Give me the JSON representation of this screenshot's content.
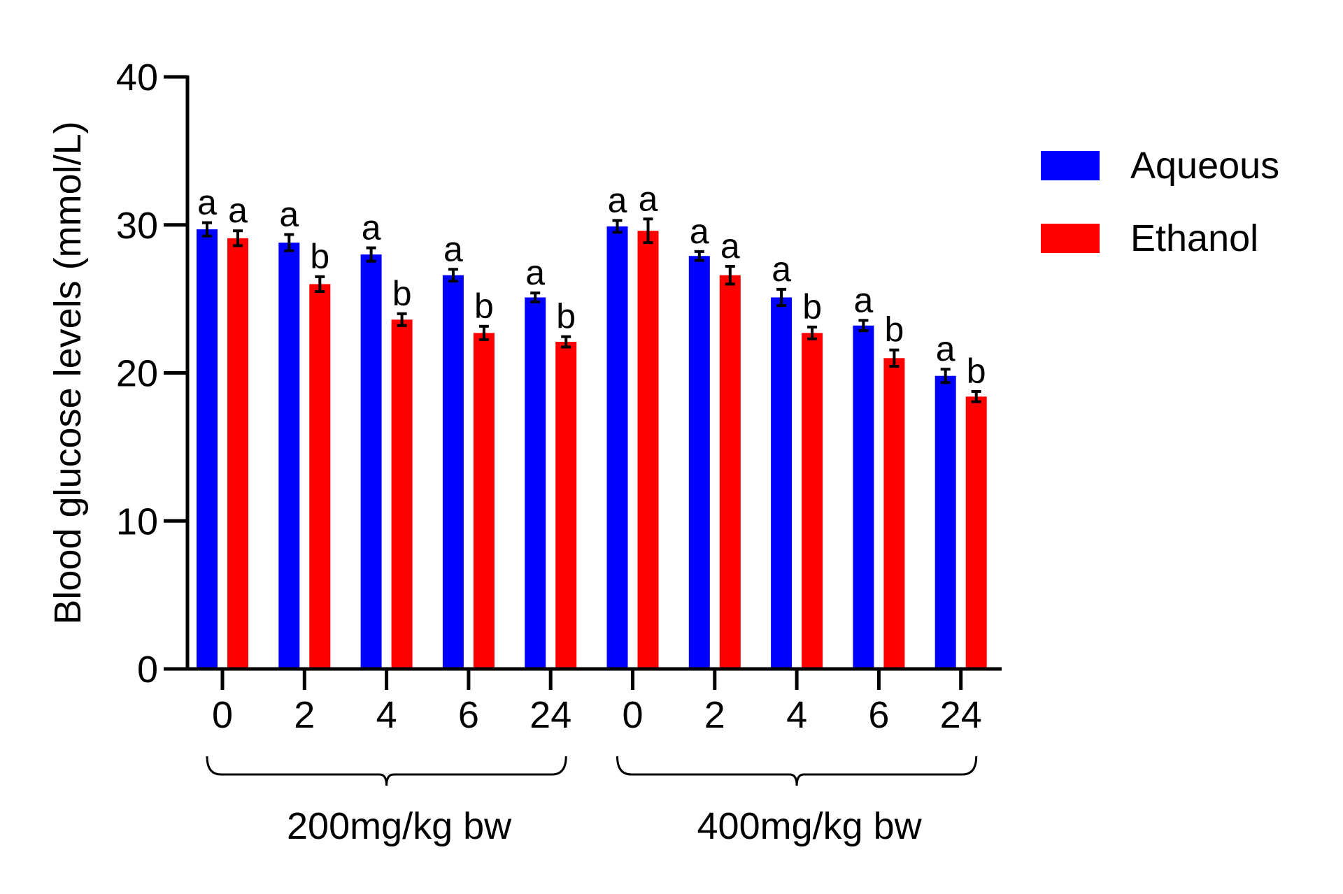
{
  "chart_data": {
    "type": "bar",
    "ylabel": "Blood glucose levels (mmol/L)",
    "xlabel": "",
    "ylim": [
      0,
      40
    ],
    "yticks": [
      0,
      10,
      20,
      30,
      40
    ],
    "grid": false,
    "legend_position": "top-right",
    "groups": [
      {
        "label": "200mg/kg bw",
        "categories": [
          "0",
          "2",
          "4",
          "6",
          "24"
        ]
      },
      {
        "label": "400mg/kg bw",
        "categories": [
          "0",
          "2",
          "4",
          "6",
          "24"
        ]
      }
    ],
    "categories": [
      "0",
      "2",
      "4",
      "6",
      "24",
      "0",
      "2",
      "4",
      "6",
      "24"
    ],
    "series": [
      {
        "name": "Aqueous",
        "color": "#0000ff",
        "values": [
          29.7,
          28.8,
          28.0,
          26.6,
          25.1,
          29.9,
          27.9,
          25.1,
          23.2,
          19.8
        ],
        "errors": [
          0.45,
          0.55,
          0.45,
          0.4,
          0.3,
          0.4,
          0.3,
          0.55,
          0.35,
          0.45
        ],
        "labels": [
          "a",
          "a",
          "a",
          "a",
          "a",
          "a",
          "a",
          "a",
          "a",
          "a"
        ]
      },
      {
        "name": "Ethanol",
        "color": "#ff0000",
        "values": [
          29.1,
          26.0,
          23.6,
          22.7,
          22.1,
          29.6,
          26.6,
          22.7,
          21.0,
          18.4
        ],
        "errors": [
          0.5,
          0.5,
          0.4,
          0.45,
          0.35,
          0.8,
          0.6,
          0.4,
          0.55,
          0.35
        ],
        "labels": [
          "a",
          "b",
          "b",
          "b",
          "b",
          "a",
          "a",
          "b",
          "b",
          "b"
        ]
      }
    ]
  }
}
